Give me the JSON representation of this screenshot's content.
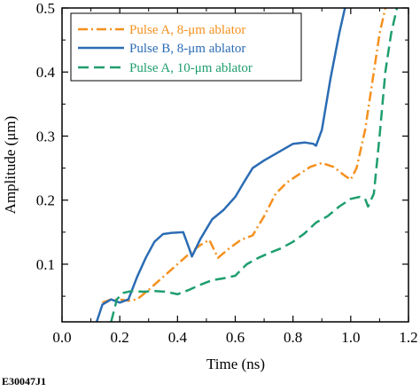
{
  "figure_id": "E30047J1",
  "chart_data": {
    "type": "line",
    "xlabel": "Time (ns)",
    "ylabel": "Amplitude (μm)",
    "xlim": [
      0.0,
      1.2
    ],
    "ylim": [
      0.01,
      0.5
    ],
    "xticks": [
      "0.0",
      "0.2",
      "0.4",
      "0.6",
      "0.8",
      "1.0",
      "1.2"
    ],
    "yticks": [
      "0.1",
      "0.2",
      "0.3",
      "0.4",
      "0.5"
    ],
    "grid": false,
    "legend_position": "top-left",
    "series": [
      {
        "name": "Pulse A, 8-μm ablator",
        "color": "#F5901E",
        "style": "dash-dot",
        "x": [
          0.14,
          0.17,
          0.2,
          0.23,
          0.26,
          0.3,
          0.35,
          0.4,
          0.45,
          0.48,
          0.51,
          0.54,
          0.58,
          0.62,
          0.66,
          0.7,
          0.74,
          0.78,
          0.82,
          0.86,
          0.9,
          0.94,
          0.98,
          1.0,
          1.02,
          1.05,
          1.08,
          1.1,
          1.12
        ],
        "y": [
          0.04,
          0.045,
          0.045,
          0.043,
          0.045,
          0.06,
          0.08,
          0.1,
          0.12,
          0.13,
          0.138,
          0.11,
          0.125,
          0.138,
          0.145,
          0.175,
          0.21,
          0.228,
          0.24,
          0.252,
          0.258,
          0.252,
          0.238,
          0.232,
          0.25,
          0.31,
          0.4,
          0.46,
          0.5
        ]
      },
      {
        "name": "Pulse B, 8-μm ablator",
        "color": "#2B6CB4",
        "style": "solid",
        "x": [
          0.12,
          0.14,
          0.17,
          0.2,
          0.23,
          0.26,
          0.29,
          0.32,
          0.35,
          0.38,
          0.42,
          0.44,
          0.45,
          0.48,
          0.52,
          0.56,
          0.6,
          0.63,
          0.66,
          0.7,
          0.75,
          0.8,
          0.84,
          0.87,
          0.88,
          0.9,
          0.93,
          0.96,
          0.98
        ],
        "y": [
          0.01,
          0.037,
          0.045,
          0.04,
          0.045,
          0.08,
          0.11,
          0.135,
          0.147,
          0.149,
          0.15,
          0.125,
          0.112,
          0.14,
          0.17,
          0.185,
          0.205,
          0.228,
          0.25,
          0.262,
          0.275,
          0.288,
          0.29,
          0.288,
          0.285,
          0.31,
          0.39,
          0.46,
          0.5
        ]
      },
      {
        "name": "Pulse A, 10-μm ablator",
        "color": "#1E9E6E",
        "style": "dashed",
        "x": [
          0.17,
          0.19,
          0.21,
          0.24,
          0.28,
          0.32,
          0.36,
          0.4,
          0.44,
          0.48,
          0.52,
          0.56,
          0.6,
          0.64,
          0.68,
          0.72,
          0.76,
          0.8,
          0.84,
          0.88,
          0.92,
          0.96,
          1.0,
          1.03,
          1.05,
          1.06,
          1.08,
          1.1,
          1.12,
          1.14,
          1.16
        ],
        "y": [
          0.01,
          0.045,
          0.055,
          0.058,
          0.057,
          0.058,
          0.057,
          0.053,
          0.06,
          0.068,
          0.075,
          0.078,
          0.082,
          0.1,
          0.11,
          0.118,
          0.125,
          0.135,
          0.148,
          0.165,
          0.175,
          0.19,
          0.202,
          0.205,
          0.202,
          0.19,
          0.21,
          0.3,
          0.4,
          0.46,
          0.5
        ]
      }
    ]
  }
}
